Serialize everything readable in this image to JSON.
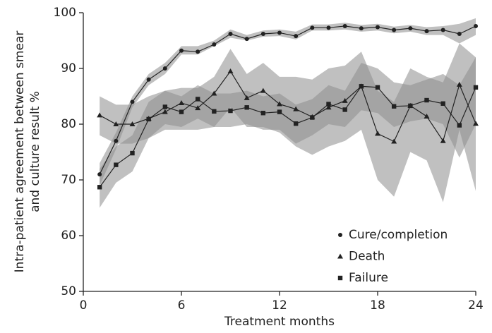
{
  "chart_data": {
    "type": "line",
    "x_label": "Treatment months",
    "y_label": [
      "Intra-patient agreement between smear",
      "and culture result %"
    ],
    "x": [
      1,
      2,
      3,
      4,
      5,
      6,
      7,
      8,
      9,
      10,
      11,
      12,
      13,
      14,
      15,
      16,
      17,
      18,
      19,
      20,
      21,
      22,
      23,
      24
    ],
    "xlim": [
      0,
      24
    ],
    "xticks": [
      0,
      6,
      12,
      18,
      24
    ],
    "ylim": [
      50,
      100
    ],
    "yticks": [
      50,
      60,
      70,
      80,
      90,
      100
    ],
    "band_color": "#8c8c8c",
    "series": [
      {
        "name": "Cure/completion",
        "color": "#222222",
        "marker": "circle",
        "values": [
          71,
          77,
          84,
          88,
          90,
          93.2,
          93,
          94.3,
          96.2,
          95.3,
          96.2,
          96.4,
          95.8,
          97.3,
          97.3,
          97.6,
          97.2,
          97.4,
          96.9,
          97.2,
          96.7,
          96.9,
          96.2,
          97.6
        ],
        "lower": [
          69,
          75.5,
          83,
          87,
          89,
          92.5,
          92.5,
          94,
          95.5,
          95,
          95.7,
          95.8,
          95.2,
          96.8,
          96.8,
          97,
          96.6,
          96.8,
          96.3,
          96.6,
          96,
          96,
          94.5,
          96
        ],
        "upper": [
          73,
          78.5,
          85,
          89,
          91,
          94,
          94,
          95,
          97,
          96,
          96.8,
          97,
          96.6,
          97.9,
          97.9,
          98.2,
          97.8,
          98,
          97.5,
          97.8,
          97.4,
          97.6,
          98,
          99
        ]
      },
      {
        "name": "Death",
        "color": "#222222",
        "marker": "triangle",
        "values": [
          81.6,
          80,
          80,
          81,
          82.2,
          83.8,
          82.9,
          85.5,
          89.5,
          84.7,
          86,
          83.6,
          82.7,
          81.3,
          83,
          84.2,
          86.8,
          78.3,
          76.9,
          83.3,
          81.4,
          77,
          87.1,
          80.1
        ],
        "lower": [
          78,
          76.5,
          76.5,
          77.5,
          79,
          79,
          79,
          79.5,
          83,
          79.5,
          79.5,
          78.5,
          76,
          74.5,
          76,
          77,
          79,
          70,
          67,
          75,
          73.5,
          66,
          79,
          68
        ],
        "upper": [
          85,
          83.5,
          83.5,
          85,
          86,
          86.5,
          86.5,
          88.5,
          93.5,
          89,
          91,
          88.5,
          88.5,
          88,
          90,
          90.5,
          93,
          86,
          84,
          90,
          88.5,
          87.5,
          94.5,
          92
        ]
      },
      {
        "name": "Failure",
        "color": "#222222",
        "marker": "square",
        "values": [
          68.7,
          72.7,
          74.8,
          80.9,
          83.1,
          82.2,
          84.5,
          82.3,
          82.4,
          83,
          82,
          82.2,
          80.1,
          81.2,
          83.6,
          82.6,
          86.8,
          86.6,
          83.2,
          83.3,
          84.3,
          83.7,
          79.8,
          86.6
        ],
        "lower": [
          65,
          69.5,
          71.5,
          77.5,
          80,
          79.5,
          81,
          79.5,
          79.5,
          80,
          79,
          79,
          76.5,
          78,
          80,
          79.5,
          82.5,
          82,
          79.5,
          80.5,
          81,
          80,
          74,
          80
        ],
        "upper": [
          72,
          76,
          78,
          84,
          86,
          85,
          87,
          85.5,
          85.5,
          86,
          85,
          85.5,
          83.5,
          84.5,
          87,
          86,
          91,
          90,
          87.5,
          87,
          88,
          89,
          87,
          92
        ]
      }
    ]
  }
}
